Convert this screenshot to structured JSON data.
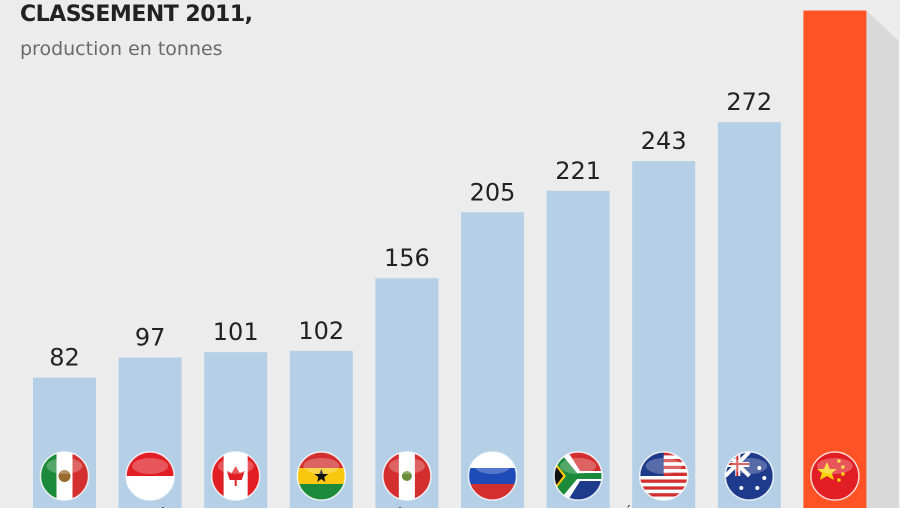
{
  "header": {
    "title": "CLASSEMENT 2011,",
    "subtitle": "production en tonnes"
  },
  "chart_data": {
    "type": "bar",
    "title": "CLASSEMENT 2011,",
    "subtitle": "production en tonnes",
    "categories": [
      "Mexique",
      "Indonésie",
      "Canada",
      "Ghana",
      "Pérou",
      "Russie",
      "Afrique du Sud",
      "États-Unis",
      "Australie",
      "Chine"
    ],
    "values": [
      82,
      97,
      101,
      102,
      156,
      205,
      221,
      243,
      272,
      355
    ],
    "value_labels": [
      "82",
      "97",
      "101",
      "102",
      "156",
      "205",
      "221",
      "243",
      "272",
      ""
    ],
    "flags": [
      "mexico-flag-icon",
      "indonesia-flag-icon",
      "canada-flag-icon",
      "ghana-flag-icon",
      "peru-flag-icon",
      "russia-flag-icon",
      "south-africa-flag-icon",
      "usa-flag-icon",
      "australia-flag-icon",
      "china-flag-icon"
    ],
    "bar_color": "#b5d0e6",
    "highlight_color": "#ff5326",
    "highlight_index": 9,
    "xlabel": "",
    "ylabel": "",
    "ylim": [
      0,
      350
    ],
    "grid": false,
    "legend": "none"
  }
}
